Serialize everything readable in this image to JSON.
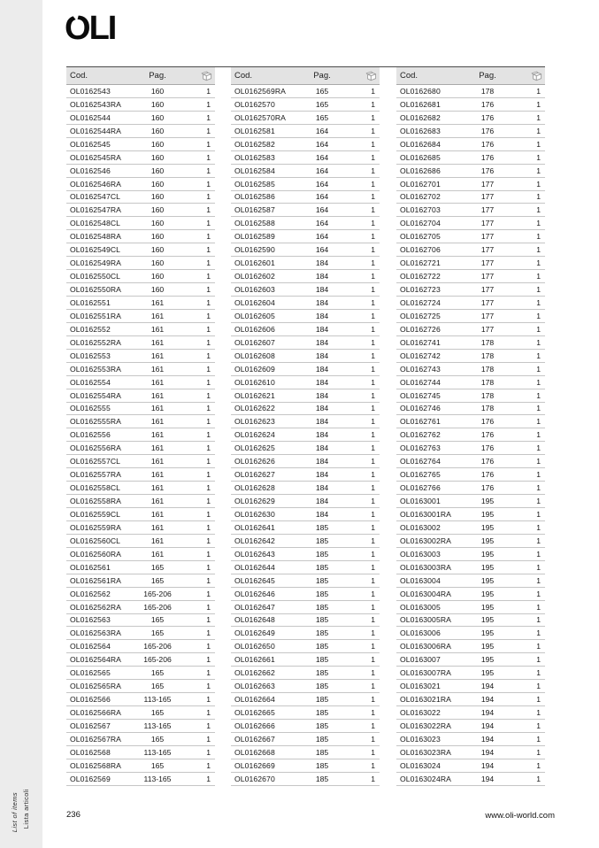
{
  "logo": {
    "text": "OLI"
  },
  "sidebar": {
    "label_italian": "Lista articoli",
    "label_english": "List of items"
  },
  "header_labels": {
    "cod": "Cod.",
    "pag": "Pag.",
    "qty_icon": "package-icon"
  },
  "footer": {
    "page_number": "236",
    "website": "www.oli-world.com"
  },
  "colors": {
    "side_strip": "#ececec",
    "table_header_bg": "#e3e3e3",
    "rule": "#4a4a4a",
    "row_line": "#c6c6c6"
  },
  "tables": [
    {
      "rows": [
        [
          "OL0162543",
          "160",
          "1"
        ],
        [
          "OL0162543RA",
          "160",
          "1"
        ],
        [
          "OL0162544",
          "160",
          "1"
        ],
        [
          "OL0162544RA",
          "160",
          "1"
        ],
        [
          "OL0162545",
          "160",
          "1"
        ],
        [
          "OL0162545RA",
          "160",
          "1"
        ],
        [
          "OL0162546",
          "160",
          "1"
        ],
        [
          "OL0162546RA",
          "160",
          "1"
        ],
        [
          "OL0162547CL",
          "160",
          "1"
        ],
        [
          "OL0162547RA",
          "160",
          "1"
        ],
        [
          "OL0162548CL",
          "160",
          "1"
        ],
        [
          "OL0162548RA",
          "160",
          "1"
        ],
        [
          "OL0162549CL",
          "160",
          "1"
        ],
        [
          "OL0162549RA",
          "160",
          "1"
        ],
        [
          "OL0162550CL",
          "160",
          "1"
        ],
        [
          "OL0162550RA",
          "160",
          "1"
        ],
        [
          "OL0162551",
          "161",
          "1"
        ],
        [
          "OL0162551RA",
          "161",
          "1"
        ],
        [
          "OL0162552",
          "161",
          "1"
        ],
        [
          "OL0162552RA",
          "161",
          "1"
        ],
        [
          "OL0162553",
          "161",
          "1"
        ],
        [
          "OL0162553RA",
          "161",
          "1"
        ],
        [
          "OL0162554",
          "161",
          "1"
        ],
        [
          "OL0162554RA",
          "161",
          "1"
        ],
        [
          "OL0162555",
          "161",
          "1"
        ],
        [
          "OL0162555RA",
          "161",
          "1"
        ],
        [
          "OL0162556",
          "161",
          "1"
        ],
        [
          "OL0162556RA",
          "161",
          "1"
        ],
        [
          "OL0162557CL",
          "161",
          "1"
        ],
        [
          "OL0162557RA",
          "161",
          "1"
        ],
        [
          "OL0162558CL",
          "161",
          "1"
        ],
        [
          "OL0162558RA",
          "161",
          "1"
        ],
        [
          "OL0162559CL",
          "161",
          "1"
        ],
        [
          "OL0162559RA",
          "161",
          "1"
        ],
        [
          "OL0162560CL",
          "161",
          "1"
        ],
        [
          "OL0162560RA",
          "161",
          "1"
        ],
        [
          "OL0162561",
          "165",
          "1"
        ],
        [
          "OL0162561RA",
          "165",
          "1"
        ],
        [
          "OL0162562",
          "165-206",
          "1"
        ],
        [
          "OL0162562RA",
          "165-206",
          "1"
        ],
        [
          "OL0162563",
          "165",
          "1"
        ],
        [
          "OL0162563RA",
          "165",
          "1"
        ],
        [
          "OL0162564",
          "165-206",
          "1"
        ],
        [
          "OL0162564RA",
          "165-206",
          "1"
        ],
        [
          "OL0162565",
          "165",
          "1"
        ],
        [
          "OL0162565RA",
          "165",
          "1"
        ],
        [
          "OL0162566",
          "113-165",
          "1"
        ],
        [
          "OL0162566RA",
          "165",
          "1"
        ],
        [
          "OL0162567",
          "113-165",
          "1"
        ],
        [
          "OL0162567RA",
          "165",
          "1"
        ],
        [
          "OL0162568",
          "113-165",
          "1"
        ],
        [
          "OL0162568RA",
          "165",
          "1"
        ],
        [
          "OL0162569",
          "113-165",
          "1"
        ]
      ]
    },
    {
      "rows": [
        [
          "OL0162569RA",
          "165",
          "1"
        ],
        [
          "OL0162570",
          "165",
          "1"
        ],
        [
          "OL0162570RA",
          "165",
          "1"
        ],
        [
          "OL0162581",
          "164",
          "1"
        ],
        [
          "OL0162582",
          "164",
          "1"
        ],
        [
          "OL0162583",
          "164",
          "1"
        ],
        [
          "OL0162584",
          "164",
          "1"
        ],
        [
          "OL0162585",
          "164",
          "1"
        ],
        [
          "OL0162586",
          "164",
          "1"
        ],
        [
          "OL0162587",
          "164",
          "1"
        ],
        [
          "OL0162588",
          "164",
          "1"
        ],
        [
          "OL0162589",
          "164",
          "1"
        ],
        [
          "OL0162590",
          "164",
          "1"
        ],
        [
          "OL0162601",
          "184",
          "1"
        ],
        [
          "OL0162602",
          "184",
          "1"
        ],
        [
          "OL0162603",
          "184",
          "1"
        ],
        [
          "OL0162604",
          "184",
          "1"
        ],
        [
          "OL0162605",
          "184",
          "1"
        ],
        [
          "OL0162606",
          "184",
          "1"
        ],
        [
          "OL0162607",
          "184",
          "1"
        ],
        [
          "OL0162608",
          "184",
          "1"
        ],
        [
          "OL0162609",
          "184",
          "1"
        ],
        [
          "OL0162610",
          "184",
          "1"
        ],
        [
          "OL0162621",
          "184",
          "1"
        ],
        [
          "OL0162622",
          "184",
          "1"
        ],
        [
          "OL0162623",
          "184",
          "1"
        ],
        [
          "OL0162624",
          "184",
          "1"
        ],
        [
          "OL0162625",
          "184",
          "1"
        ],
        [
          "OL0162626",
          "184",
          "1"
        ],
        [
          "OL0162627",
          "184",
          "1"
        ],
        [
          "OL0162628",
          "184",
          "1"
        ],
        [
          "OL0162629",
          "184",
          "1"
        ],
        [
          "OL0162630",
          "184",
          "1"
        ],
        [
          "OL0162641",
          "185",
          "1"
        ],
        [
          "OL0162642",
          "185",
          "1"
        ],
        [
          "OL0162643",
          "185",
          "1"
        ],
        [
          "OL0162644",
          "185",
          "1"
        ],
        [
          "OL0162645",
          "185",
          "1"
        ],
        [
          "OL0162646",
          "185",
          "1"
        ],
        [
          "OL0162647",
          "185",
          "1"
        ],
        [
          "OL0162648",
          "185",
          "1"
        ],
        [
          "OL0162649",
          "185",
          "1"
        ],
        [
          "OL0162650",
          "185",
          "1"
        ],
        [
          "OL0162661",
          "185",
          "1"
        ],
        [
          "OL0162662",
          "185",
          "1"
        ],
        [
          "OL0162663",
          "185",
          "1"
        ],
        [
          "OL0162664",
          "185",
          "1"
        ],
        [
          "OL0162665",
          "185",
          "1"
        ],
        [
          "OL0162666",
          "185",
          "1"
        ],
        [
          "OL0162667",
          "185",
          "1"
        ],
        [
          "OL0162668",
          "185",
          "1"
        ],
        [
          "OL0162669",
          "185",
          "1"
        ],
        [
          "OL0162670",
          "185",
          "1"
        ]
      ]
    },
    {
      "rows": [
        [
          "OL0162680",
          "178",
          "1"
        ],
        [
          "OL0162681",
          "176",
          "1"
        ],
        [
          "OL0162682",
          "176",
          "1"
        ],
        [
          "OL0162683",
          "176",
          "1"
        ],
        [
          "OL0162684",
          "176",
          "1"
        ],
        [
          "OL0162685",
          "176",
          "1"
        ],
        [
          "OL0162686",
          "176",
          "1"
        ],
        [
          "OL0162701",
          "177",
          "1"
        ],
        [
          "OL0162702",
          "177",
          "1"
        ],
        [
          "OL0162703",
          "177",
          "1"
        ],
        [
          "OL0162704",
          "177",
          "1"
        ],
        [
          "OL0162705",
          "177",
          "1"
        ],
        [
          "OL0162706",
          "177",
          "1"
        ],
        [
          "OL0162721",
          "177",
          "1"
        ],
        [
          "OL0162722",
          "177",
          "1"
        ],
        [
          "OL0162723",
          "177",
          "1"
        ],
        [
          "OL0162724",
          "177",
          "1"
        ],
        [
          "OL0162725",
          "177",
          "1"
        ],
        [
          "OL0162726",
          "177",
          "1"
        ],
        [
          "OL0162741",
          "178",
          "1"
        ],
        [
          "OL0162742",
          "178",
          "1"
        ],
        [
          "OL0162743",
          "178",
          "1"
        ],
        [
          "OL0162744",
          "178",
          "1"
        ],
        [
          "OL0162745",
          "178",
          "1"
        ],
        [
          "OL0162746",
          "178",
          "1"
        ],
        [
          "OL0162761",
          "176",
          "1"
        ],
        [
          "OL0162762",
          "176",
          "1"
        ],
        [
          "OL0162763",
          "176",
          "1"
        ],
        [
          "OL0162764",
          "176",
          "1"
        ],
        [
          "OL0162765",
          "176",
          "1"
        ],
        [
          "OL0162766",
          "176",
          "1"
        ],
        [
          "OL0163001",
          "195",
          "1"
        ],
        [
          "OL0163001RA",
          "195",
          "1"
        ],
        [
          "OL0163002",
          "195",
          "1"
        ],
        [
          "OL0163002RA",
          "195",
          "1"
        ],
        [
          "OL0163003",
          "195",
          "1"
        ],
        [
          "OL0163003RA",
          "195",
          "1"
        ],
        [
          "OL0163004",
          "195",
          "1"
        ],
        [
          "OL0163004RA",
          "195",
          "1"
        ],
        [
          "OL0163005",
          "195",
          "1"
        ],
        [
          "OL0163005RA",
          "195",
          "1"
        ],
        [
          "OL0163006",
          "195",
          "1"
        ],
        [
          "OL0163006RA",
          "195",
          "1"
        ],
        [
          "OL0163007",
          "195",
          "1"
        ],
        [
          "OL0163007RA",
          "195",
          "1"
        ],
        [
          "OL0163021",
          "194",
          "1"
        ],
        [
          "OL0163021RA",
          "194",
          "1"
        ],
        [
          "OL0163022",
          "194",
          "1"
        ],
        [
          "OL0163022RA",
          "194",
          "1"
        ],
        [
          "OL0163023",
          "194",
          "1"
        ],
        [
          "OL0163023RA",
          "194",
          "1"
        ],
        [
          "OL0163024",
          "194",
          "1"
        ],
        [
          "OL0163024RA",
          "194",
          "1"
        ]
      ]
    }
  ]
}
